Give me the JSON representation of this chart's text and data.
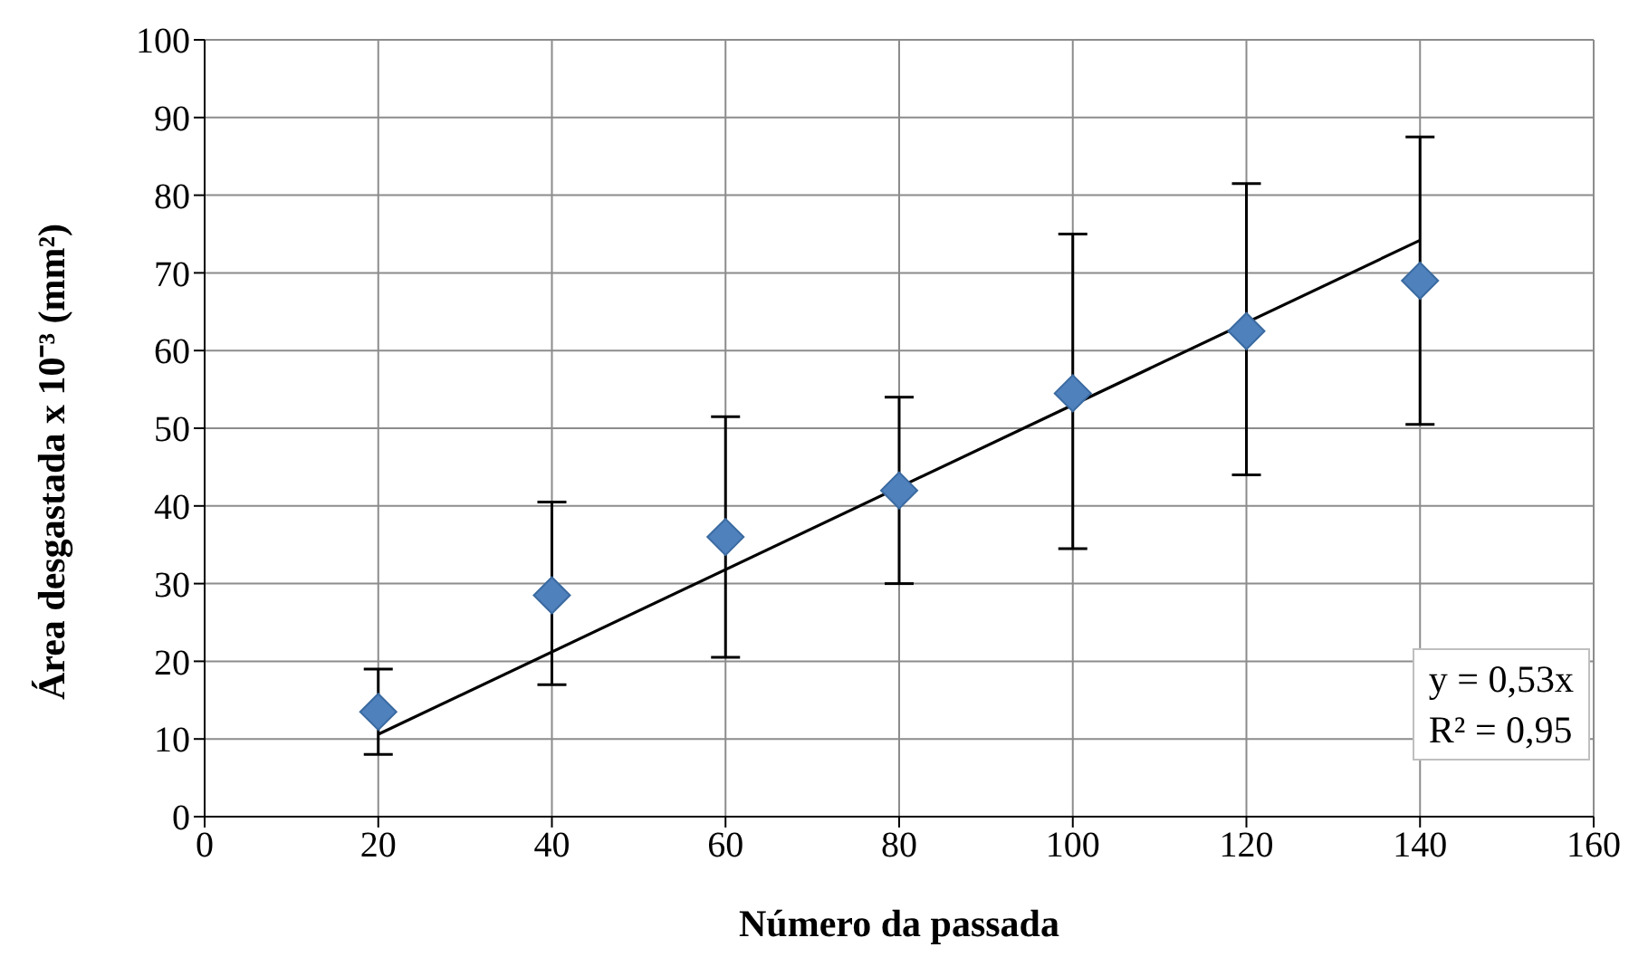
{
  "chart_data": {
    "type": "scatter",
    "xlabel": "Número da passada",
    "ylabel": "Área desgastada x 10⁻³ (mm²)",
    "x": [
      20,
      40,
      60,
      80,
      100,
      120,
      140
    ],
    "series": [
      {
        "type": "scatter",
        "color": "#4f81bd",
        "marker": "diamond",
        "values": [
          13.5,
          28.5,
          36,
          42,
          54.5,
          62.5,
          69
        ],
        "errors": [
          [
            8,
            19
          ],
          [
            17,
            40.5
          ],
          [
            20.5,
            51.5
          ],
          [
            30,
            54
          ],
          [
            34.5,
            75
          ],
          [
            44,
            81.5
          ],
          [
            50.5,
            87.5
          ]
        ]
      },
      {
        "type": "line",
        "color": "#000000",
        "marker": "none",
        "x": [
          20,
          140
        ],
        "values": [
          10.6,
          74.2
        ]
      }
    ],
    "xlim": [
      0,
      160
    ],
    "xticks": [
      0,
      20,
      40,
      60,
      80,
      100,
      120,
      140,
      160
    ],
    "ylim": [
      0,
      100
    ],
    "yticks": [
      0,
      10,
      20,
      30,
      40,
      50,
      60,
      70,
      80,
      90,
      100
    ],
    "grid": true,
    "legend": false,
    "annotations": [
      "y = 0,53x",
      "R² = 0,95"
    ]
  }
}
